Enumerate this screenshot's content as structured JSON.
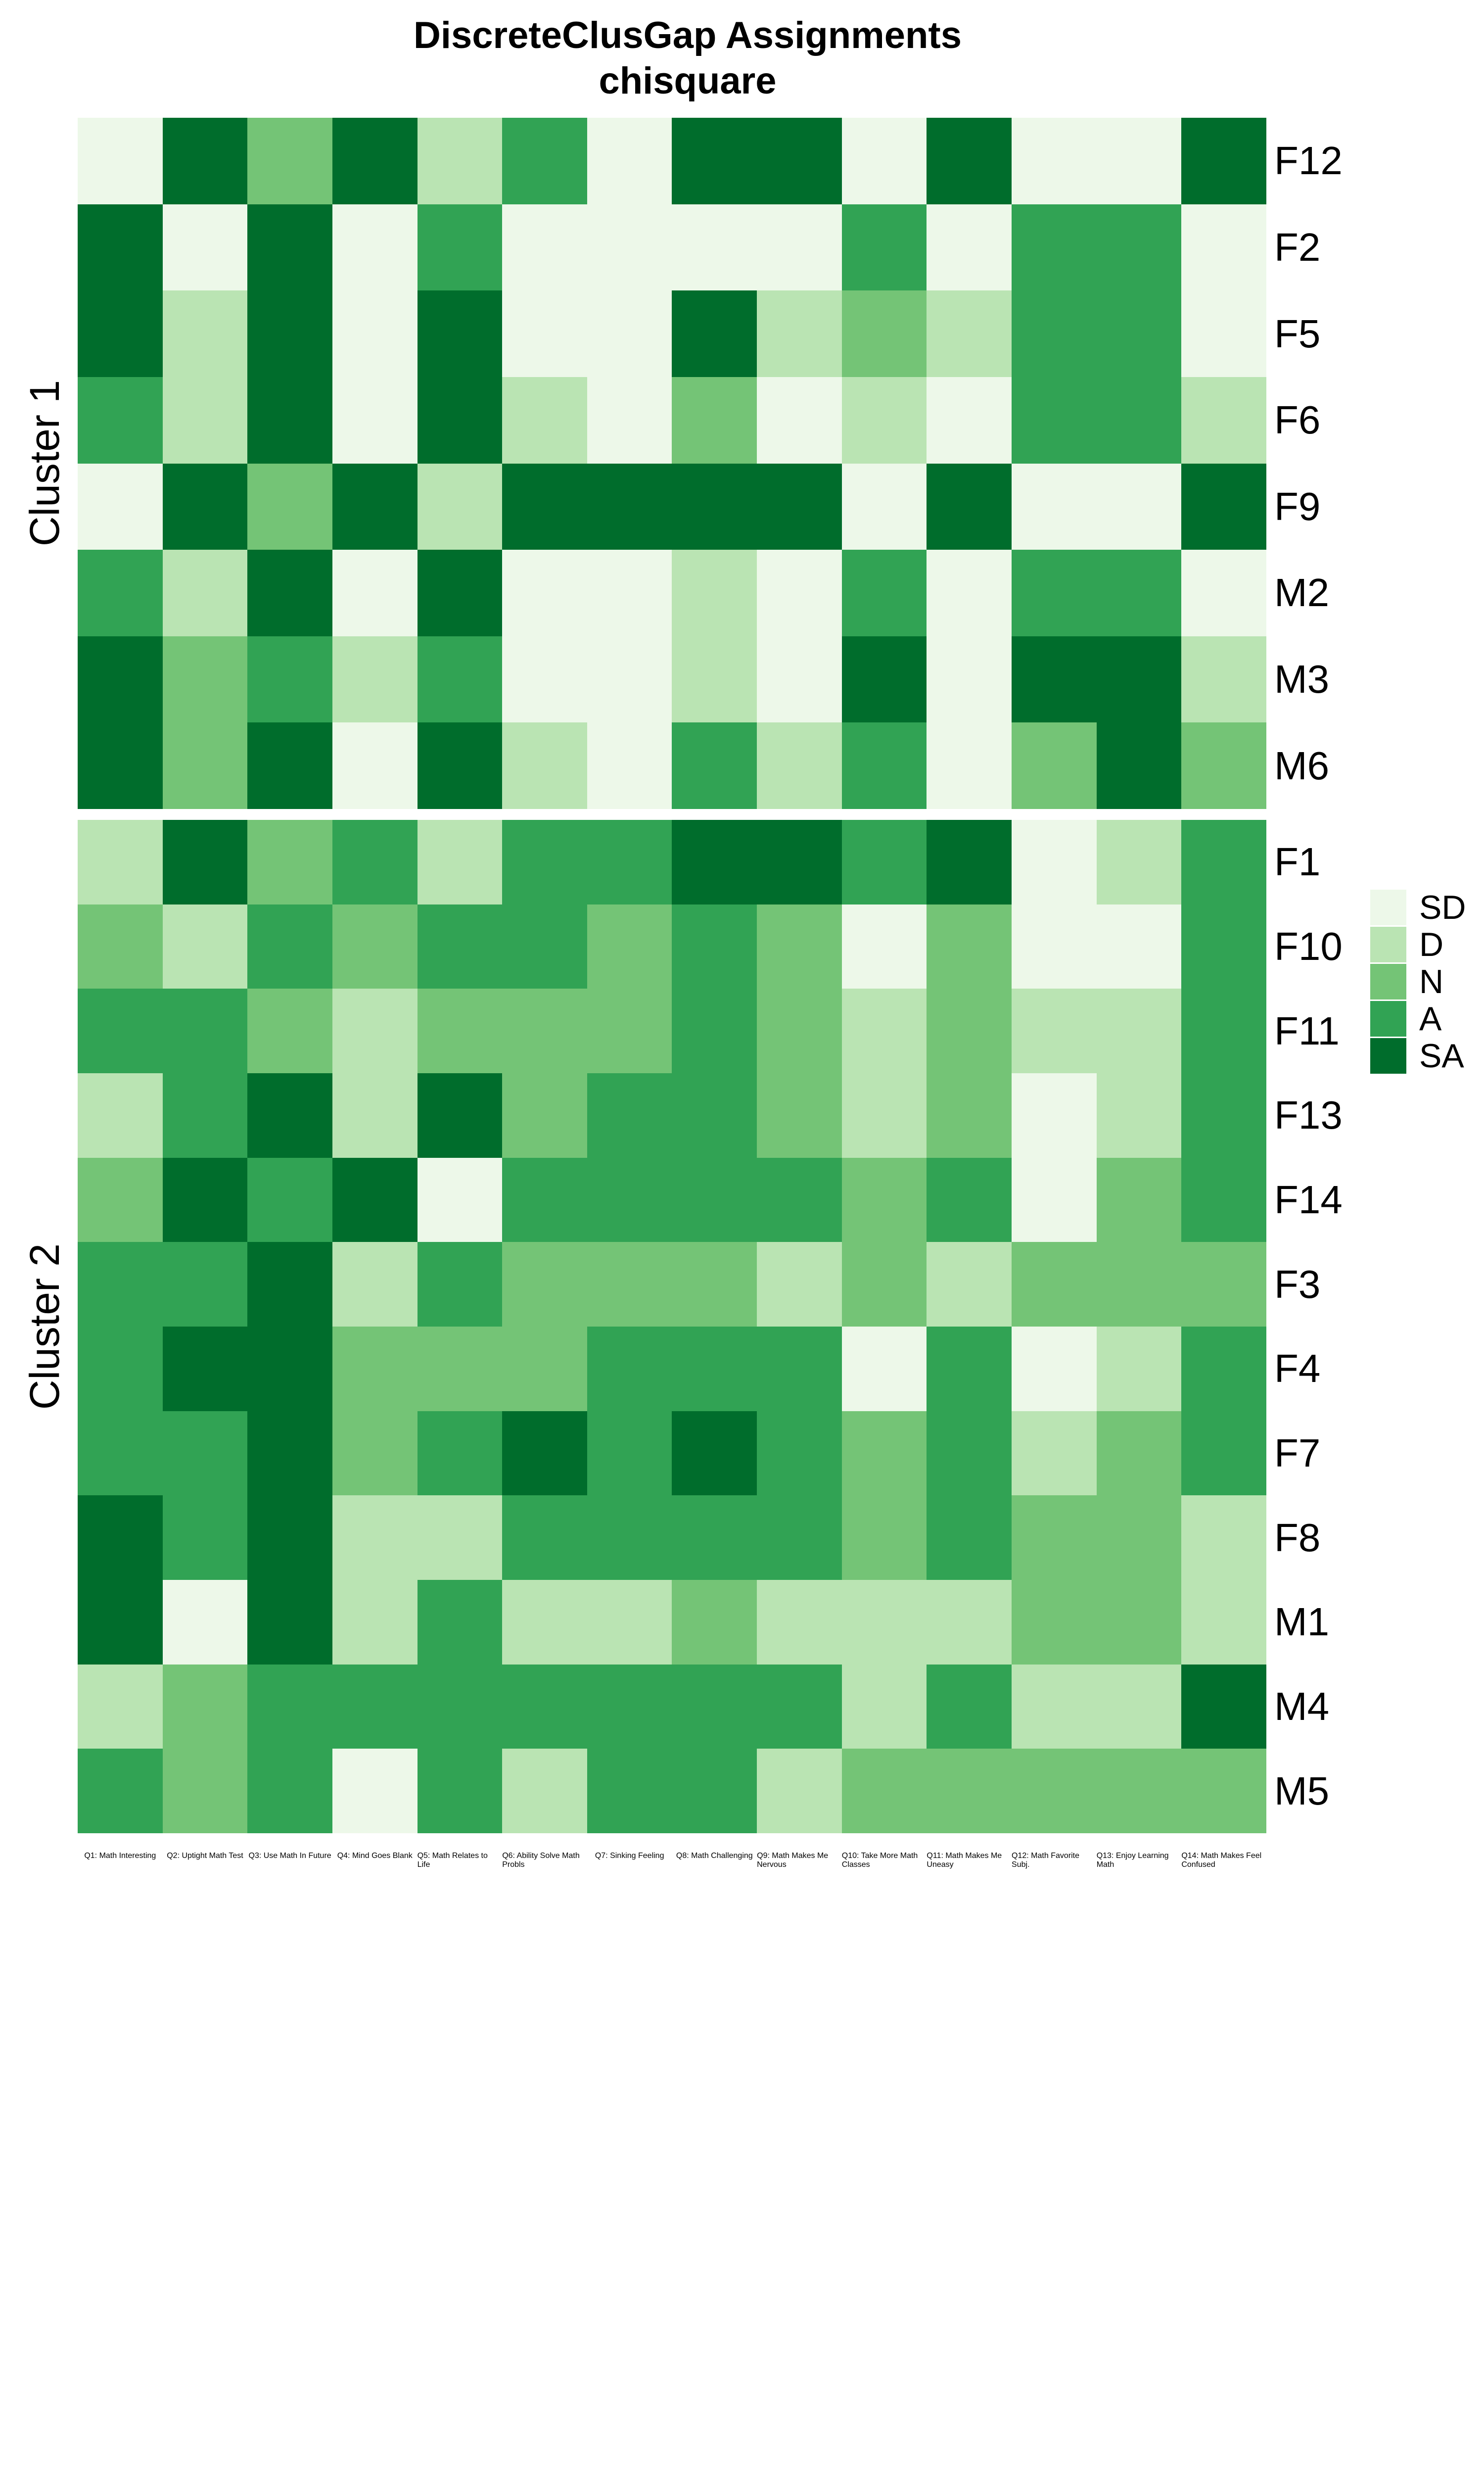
{
  "title": {
    "line1": "DiscreteClusGap Assignments",
    "line2": "chisquare"
  },
  "legend": {
    "entries": [
      "SD",
      "D",
      "N",
      "A",
      "SA"
    ]
  },
  "chart_data": {
    "type": "heatmap",
    "title": "DiscreteClusGap Assignments",
    "subtitle": "chisquare",
    "value_scale": [
      "SD",
      "D",
      "N",
      "A",
      "SA"
    ],
    "palette": {
      "SD": "#edf8e9",
      "D": "#bae4b3",
      "N": "#74c476",
      "A": "#31a354",
      "SA": "#006d2c"
    },
    "columns": [
      "Q1: Math Interesting",
      "Q2: Uptight Math Test",
      "Q3: Use Math In Future",
      "Q4: Mind Goes Blank",
      "Q5: Math Relates to Life",
      "Q6: Ability Solve Math Probls",
      "Q7: Sinking Feeling",
      "Q8: Math Challenging",
      "Q9: Math Makes Me Nervous",
      "Q10: Take More Math Classes",
      "Q11: Math Makes Me Uneasy",
      "Q12: Math Favorite Subj.",
      "Q13: Enjoy Learning Math",
      "Q14: Math Makes Feel Confused"
    ],
    "clusters": [
      {
        "name": "Cluster 1",
        "rows": [
          {
            "label": "F12",
            "values": [
              "SD",
              "SA",
              "N",
              "SA",
              "D",
              "A",
              "SD",
              "SA",
              "SA",
              "SD",
              "SA",
              "SD",
              "SD",
              "SA"
            ]
          },
          {
            "label": "F2",
            "values": [
              "SA",
              "SD",
              "SA",
              "SD",
              "A",
              "SD",
              "SD",
              "SD",
              "SD",
              "A",
              "SD",
              "A",
              "A",
              "SD"
            ]
          },
          {
            "label": "F5",
            "values": [
              "SA",
              "D",
              "SA",
              "SD",
              "SA",
              "SD",
              "SD",
              "SA",
              "D",
              "N",
              "D",
              "A",
              "A",
              "SD"
            ]
          },
          {
            "label": "F6",
            "values": [
              "A",
              "D",
              "SA",
              "SD",
              "SA",
              "D",
              "SD",
              "N",
              "SD",
              "D",
              "SD",
              "A",
              "A",
              "D"
            ]
          },
          {
            "label": "F9",
            "values": [
              "SD",
              "SA",
              "N",
              "SA",
              "D",
              "SA",
              "SA",
              "SA",
              "SA",
              "SD",
              "SA",
              "SD",
              "SD",
              "SA"
            ]
          },
          {
            "label": "M2",
            "values": [
              "A",
              "D",
              "SA",
              "SD",
              "SA",
              "SD",
              "SD",
              "D",
              "SD",
              "A",
              "SD",
              "A",
              "A",
              "SD"
            ]
          },
          {
            "label": "M3",
            "values": [
              "SA",
              "N",
              "A",
              "D",
              "A",
              "SD",
              "SD",
              "D",
              "SD",
              "SA",
              "SD",
              "SA",
              "SA",
              "D"
            ]
          },
          {
            "label": "M6",
            "values": [
              "SA",
              "N",
              "SA",
              "SD",
              "SA",
              "D",
              "SD",
              "A",
              "D",
              "A",
              "SD",
              "N",
              "SA",
              "N"
            ]
          }
        ]
      },
      {
        "name": "Cluster 2",
        "rows": [
          {
            "label": "F1",
            "values": [
              "D",
              "SA",
              "N",
              "A",
              "D",
              "A",
              "A",
              "SA",
              "SA",
              "A",
              "SA",
              "SD",
              "D",
              "A"
            ]
          },
          {
            "label": "F10",
            "values": [
              "N",
              "D",
              "A",
              "N",
              "A",
              "A",
              "N",
              "A",
              "N",
              "SD",
              "N",
              "SD",
              "SD",
              "A"
            ]
          },
          {
            "label": "F11",
            "values": [
              "A",
              "A",
              "N",
              "D",
              "N",
              "N",
              "N",
              "A",
              "N",
              "D",
              "N",
              "D",
              "D",
              "A"
            ]
          },
          {
            "label": "F13",
            "values": [
              "D",
              "A",
              "SA",
              "D",
              "SA",
              "N",
              "A",
              "A",
              "N",
              "D",
              "N",
              "SD",
              "D",
              "A"
            ]
          },
          {
            "label": "F14",
            "values": [
              "N",
              "SA",
              "A",
              "SA",
              "SD",
              "A",
              "A",
              "A",
              "A",
              "N",
              "A",
              "SD",
              "N",
              "A"
            ]
          },
          {
            "label": "F3",
            "values": [
              "A",
              "A",
              "SA",
              "D",
              "A",
              "N",
              "N",
              "N",
              "D",
              "N",
              "D",
              "N",
              "N",
              "N"
            ]
          },
          {
            "label": "F4",
            "values": [
              "A",
              "SA",
              "SA",
              "N",
              "N",
              "N",
              "A",
              "A",
              "A",
              "SD",
              "A",
              "SD",
              "D",
              "A"
            ]
          },
          {
            "label": "F7",
            "values": [
              "A",
              "A",
              "SA",
              "N",
              "A",
              "SA",
              "A",
              "SA",
              "A",
              "N",
              "A",
              "D",
              "N",
              "A"
            ]
          },
          {
            "label": "F8",
            "values": [
              "SA",
              "A",
              "SA",
              "D",
              "D",
              "A",
              "A",
              "A",
              "A",
              "N",
              "A",
              "N",
              "N",
              "D"
            ]
          },
          {
            "label": "M1",
            "values": [
              "SA",
              "SD",
              "SA",
              "D",
              "A",
              "D",
              "D",
              "N",
              "D",
              "D",
              "D",
              "N",
              "N",
              "D"
            ]
          },
          {
            "label": "M4",
            "values": [
              "D",
              "N",
              "A",
              "A",
              "A",
              "A",
              "A",
              "A",
              "A",
              "D",
              "A",
              "D",
              "D",
              "SA"
            ]
          },
          {
            "label": "M5",
            "values": [
              "A",
              "N",
              "A",
              "SD",
              "A",
              "D",
              "A",
              "A",
              "D",
              "N",
              "N",
              "N",
              "N",
              "N"
            ]
          }
        ]
      }
    ]
  }
}
